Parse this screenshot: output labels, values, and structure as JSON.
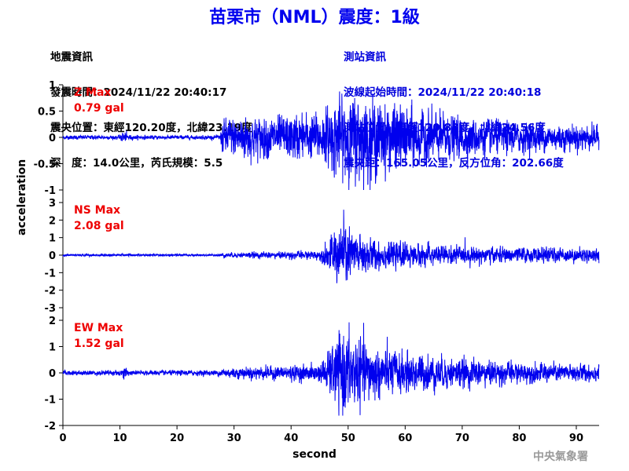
{
  "title": "苗栗市（NML）震度：1級",
  "info_left": [
    "地震資訊",
    "發震時間：2024/11/22 20:40:17",
    "震央位置：東經120.20度，北緯23.19度",
    "深　度：14.0公里，芮氏規模：5.5"
  ],
  "info_right": [
    "測站資訊",
    "波線起始時間：2024/11/22 20:40:18",
    "測站位置：東經120.83度，北緯24.56度",
    "震央距：165.05公里，反方位角：202.66度"
  ],
  "agency": "中央氣象署",
  "colors": {
    "trace": "#0000ee",
    "title": "#0000ee",
    "label": "#ee0000",
    "info_right": "#0000dd"
  },
  "chart_data": {
    "type": "line",
    "xlabel": "second",
    "ylabel": "acceleration",
    "xlim": [
      0,
      94
    ],
    "x_ticks": [
      0,
      10,
      20,
      30,
      40,
      50,
      60,
      70,
      80,
      90
    ],
    "panels": [
      {
        "name": "Z",
        "label": "Z Max",
        "max_text": "0.79 gal",
        "ylim": [
          -1,
          1
        ],
        "y_ticks": [
          -1,
          -0.5,
          0,
          0.5,
          1
        ],
        "y_tick_labels": [
          "-1",
          "-0.5",
          "0",
          "0.5",
          "1"
        ],
        "envelope": [
          [
            0,
            0.03
          ],
          [
            10,
            0.03
          ],
          [
            10.5,
            0.1
          ],
          [
            11.5,
            0.05
          ],
          [
            12,
            0.03
          ],
          [
            27.5,
            0.03
          ],
          [
            28,
            0.25
          ],
          [
            31,
            0.35
          ],
          [
            34,
            0.3
          ],
          [
            44,
            0.35
          ],
          [
            46,
            0.4
          ],
          [
            48,
            0.55
          ],
          [
            52,
            0.65
          ],
          [
            56,
            0.5
          ],
          [
            60,
            0.45
          ],
          [
            65,
            0.35
          ],
          [
            70,
            0.3
          ],
          [
            80,
            0.22
          ],
          [
            94,
            0.18
          ]
        ]
      },
      {
        "name": "NS",
        "label": "NS Max",
        "max_text": "2.08 gal",
        "ylim": [
          -3,
          3
        ],
        "y_ticks": [
          -3,
          -2,
          -1,
          0,
          1,
          2,
          3
        ],
        "y_tick_labels": [
          "-3",
          "-2",
          "-1",
          "0",
          "1",
          "2",
          "3"
        ],
        "envelope": [
          [
            0,
            0.05
          ],
          [
            27,
            0.05
          ],
          [
            28,
            0.1
          ],
          [
            45,
            0.2
          ],
          [
            47,
            0.8
          ],
          [
            49,
            1.6
          ],
          [
            51,
            1.1
          ],
          [
            54,
            0.7
          ],
          [
            58,
            0.55
          ],
          [
            65,
            0.45
          ],
          [
            75,
            0.35
          ],
          [
            94,
            0.3
          ]
        ]
      },
      {
        "name": "EW",
        "label": "EW Max",
        "max_text": "1.52 gal",
        "ylim": [
          -2,
          2
        ],
        "y_ticks": [
          -2,
          -1,
          0,
          1,
          2
        ],
        "y_tick_labels": [
          "-2",
          "-1",
          "0",
          "1",
          "2"
        ],
        "envelope": [
          [
            0,
            0.07
          ],
          [
            10,
            0.08
          ],
          [
            10.7,
            0.2
          ],
          [
            11.5,
            0.1
          ],
          [
            12,
            0.07
          ],
          [
            27,
            0.08
          ],
          [
            28,
            0.15
          ],
          [
            45,
            0.25
          ],
          [
            47,
            0.7
          ],
          [
            49,
            1.3
          ],
          [
            52,
            1.0
          ],
          [
            55,
            0.75
          ],
          [
            60,
            0.6
          ],
          [
            68,
            0.45
          ],
          [
            80,
            0.3
          ],
          [
            94,
            0.25
          ]
        ]
      }
    ]
  }
}
